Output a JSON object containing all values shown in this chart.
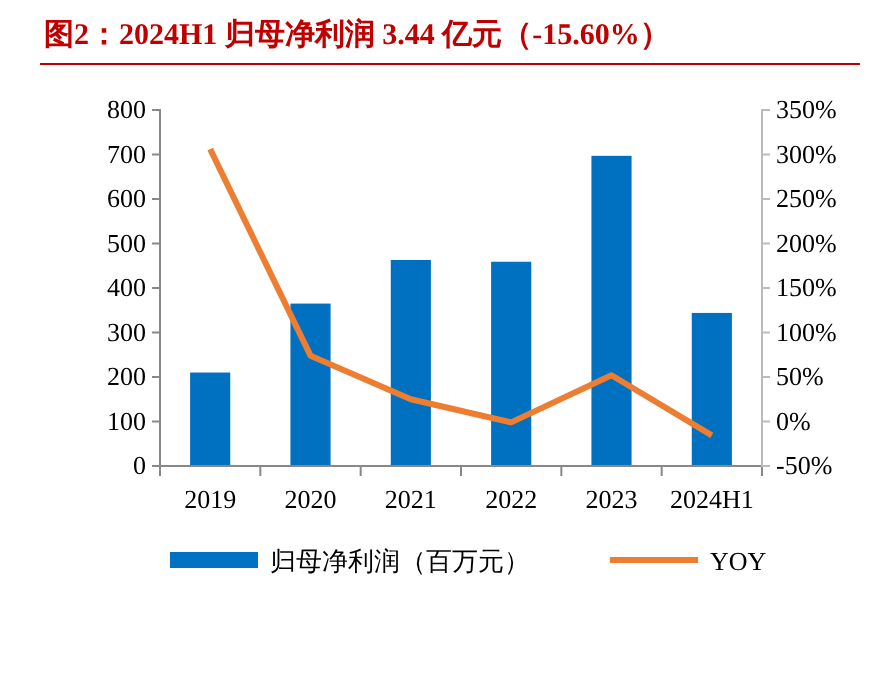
{
  "chart_data": {
    "type": "bar",
    "title": "图2：2024H1 归母净利润 3.44 亿元（-15.60%）",
    "categories": [
      "2019",
      "2020",
      "2021",
      "2022",
      "2023",
      "2024H1"
    ],
    "series": [
      {
        "name": "归母净利润（百万元）",
        "color": "#0070c0",
        "values": [
          210,
          365,
          463,
          459,
          697,
          344
        ]
      },
      {
        "name": "YOY",
        "type": "line",
        "axis": "y2",
        "color": "#ed7d31",
        "values": [
          306,
          74,
          25,
          -1,
          52,
          -15.6
        ]
      }
    ],
    "ylim": [
      0,
      800
    ],
    "yticks": [
      0,
      100,
      200,
      300,
      400,
      500,
      600,
      700,
      800
    ],
    "y2lim": [
      -50,
      350
    ],
    "y2ticks": [
      {
        "value": -50,
        "label": "-50%"
      },
      {
        "value": 0,
        "label": "0%"
      },
      {
        "value": 50,
        "label": "50%"
      },
      {
        "value": 100,
        "label": "100%"
      },
      {
        "value": 150,
        "label": "150%"
      },
      {
        "value": 200,
        "label": "200%"
      },
      {
        "value": 250,
        "label": "250%"
      },
      {
        "value": 300,
        "label": "300%"
      },
      {
        "value": 350,
        "label": "350%"
      }
    ],
    "legend": "bottom",
    "grid": false,
    "marker": "none"
  }
}
